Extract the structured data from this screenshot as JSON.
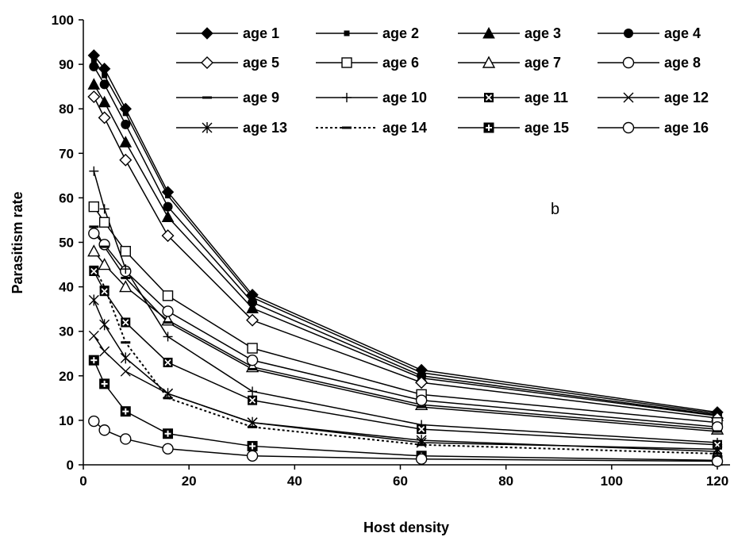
{
  "chart_data": {
    "type": "line",
    "title": "",
    "panel_label": "b",
    "xlabel": "Host density",
    "ylabel": "Parasitism rate",
    "xlim": [
      0,
      120
    ],
    "ylim": [
      0,
      100
    ],
    "x_ticks": [
      0,
      20,
      40,
      60,
      80,
      100,
      120
    ],
    "y_ticks": [
      0,
      10,
      20,
      30,
      40,
      50,
      60,
      70,
      80,
      90,
      100
    ],
    "grid": false,
    "legend_position": "top-right",
    "x": [
      2,
      4,
      8,
      16,
      32,
      64,
      120
    ],
    "series": [
      {
        "name": "age 1",
        "marker": "diamond-filled",
        "dash": "solid",
        "values": [
          92,
          89,
          80,
          61.3,
          38.2,
          21.3,
          11.8
        ]
      },
      {
        "name": "age 2",
        "marker": "square-small",
        "dash": "solid",
        "values": [
          91,
          87.5,
          79,
          60.5,
          37.6,
          20.7,
          11.5
        ]
      },
      {
        "name": "age 3",
        "marker": "triangle-filled",
        "dash": "solid",
        "values": [
          85.5,
          81.5,
          72.5,
          55.7,
          35.2,
          19.5,
          11
        ]
      },
      {
        "name": "age 4",
        "marker": "circle-filled",
        "dash": "solid",
        "values": [
          89.5,
          85.5,
          76.5,
          58,
          36.5,
          20,
          11.2
        ]
      },
      {
        "name": "age 5",
        "marker": "diamond-open",
        "dash": "solid",
        "values": [
          82.7,
          78,
          68.5,
          51.5,
          32.5,
          18.5,
          10.5
        ]
      },
      {
        "name": "age 6",
        "marker": "square-open",
        "dash": "solid",
        "values": [
          58,
          54.5,
          48,
          38,
          26.2,
          15.8,
          9.5
        ]
      },
      {
        "name": "age 7",
        "marker": "triangle-open",
        "dash": "solid",
        "values": [
          48,
          45,
          40,
          32.5,
          22,
          13.5,
          8
        ]
      },
      {
        "name": "age 8",
        "marker": "circle-open",
        "dash": "solid",
        "values": [
          52,
          49.5,
          43.5,
          34.5,
          23.5,
          14.5,
          8.5
        ]
      },
      {
        "name": "age 9",
        "marker": "dash",
        "dash": "solid",
        "values": [
          53.5,
          49,
          42,
          32,
          21.5,
          13,
          7.5
        ]
      },
      {
        "name": "age 10",
        "marker": "plus",
        "dash": "solid",
        "values": [
          66,
          57.5,
          44,
          28.8,
          16.5,
          9,
          5
        ]
      },
      {
        "name": "age 11",
        "marker": "square-x",
        "dash": "solid",
        "values": [
          43.5,
          39,
          32,
          23,
          14.5,
          8,
          4.5
        ]
      },
      {
        "name": "age 12",
        "marker": "x",
        "dash": "solid",
        "values": [
          29,
          25.5,
          21,
          16,
          9.5,
          5,
          3.5
        ]
      },
      {
        "name": "age 13",
        "marker": "star",
        "dash": "solid",
        "values": [
          37,
          31.5,
          24,
          16,
          9.5,
          5.5,
          3
        ]
      },
      {
        "name": "age 14",
        "marker": "dash",
        "dash": "dotted",
        "values": [
          44.5,
          40,
          27.5,
          15,
          8.5,
          4.5,
          2.5
        ]
      },
      {
        "name": "age 15",
        "marker": "square-plus",
        "dash": "solid",
        "values": [
          23.5,
          18.2,
          12,
          7,
          4.2,
          2,
          1
        ]
      },
      {
        "name": "age 16",
        "marker": "circle-open",
        "dash": "solid",
        "values": [
          9.8,
          7.8,
          5.8,
          3.6,
          2,
          1.3,
          0.8
        ]
      }
    ]
  }
}
